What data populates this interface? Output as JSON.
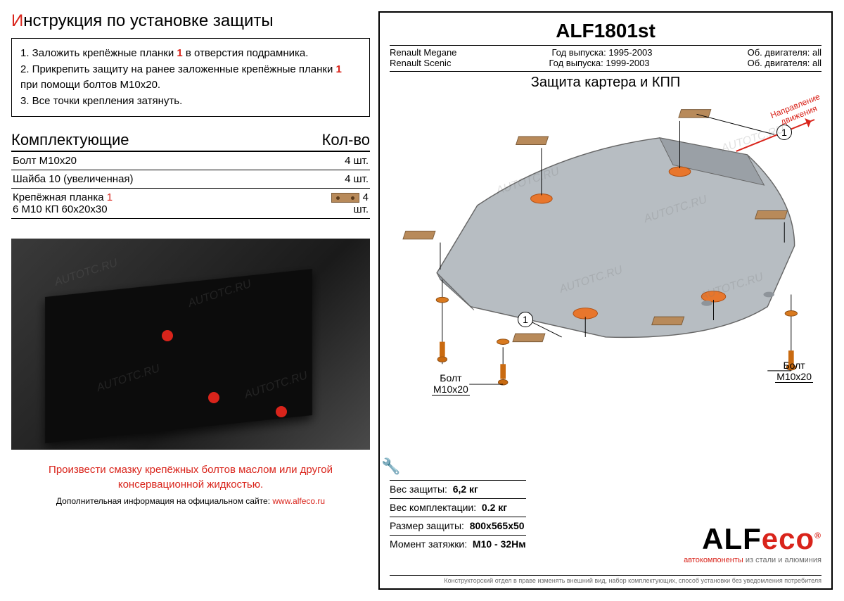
{
  "left": {
    "title_prefix": "И",
    "title_rest": "нструкция по установке защиты",
    "instructions": [
      {
        "n": "1.",
        "text_a": "Заложить крепёжные планки ",
        "red": "1",
        "text_b": " в отверстия подрамника."
      },
      {
        "n": "2.",
        "text_a": "Прикрепить защиту на ранее заложенные крепёжные планки ",
        "red": "1",
        "text_b": " при помощи болтов М10х20."
      },
      {
        "n": "3.",
        "text_a": "Все точки крепления затянуть.",
        "red": "",
        "text_b": ""
      }
    ],
    "parts_header": "Комплектующие",
    "qty_header": "Кол-во",
    "parts": [
      {
        "name": "Болт М10х20",
        "qty": "4 шт."
      },
      {
        "name": "Шайба 10 (увеличенная)",
        "qty": "4 шт."
      },
      {
        "name_a": "Крепёжная планка ",
        "red": "1",
        "name_b": "",
        "sub": "6 М10 КП 60х20х30",
        "qty": "4 шт.",
        "icon": true
      }
    ],
    "warning": "Произвести смазку крепёжных болтов маслом или другой консервационной жидкостью.",
    "footnote_a": "Дополнительная информация на официальном сайте: ",
    "footnote_link": "www.alfeco.ru"
  },
  "right": {
    "part_no": "ALF1801st",
    "spec": [
      {
        "model": "Renault Megane",
        "year_l": "Год выпуска:",
        "year_v": "1995-2003",
        "eng_l": "Об. двигателя:",
        "eng_v": "all"
      },
      {
        "model": "Renault Scenic",
        "year_l": "Год выпуска:",
        "year_v": "1999-2003",
        "eng_l": "Об. двигателя:",
        "eng_v": "all"
      }
    ],
    "diagram_title": "Защита картера и КПП",
    "direction_label": "Направление\nдвижения",
    "bolt_label": "Болт\nМ10х20",
    "bottom": [
      {
        "l": "Вес защиты:",
        "v": "6,2 кг"
      },
      {
        "l": "Вес комплектации:",
        "v": "0.2 кг"
      },
      {
        "l": "Размер защиты:",
        "v": "800х565х50"
      },
      {
        "l": "Момент затяжки:",
        "v": "М10 - 32Нм"
      }
    ],
    "brand_a": "ALF",
    "brand_b": "eco",
    "brand_sub_red": "автокомпоненты ",
    "brand_sub_gray": "из стали и алюминия",
    "disclaimer": "Конструкторский отдел в праве изменять внешний вид, набор комплектующих, способ установки без уведомления потребителя"
  },
  "watermark": "AUTOTC.RU",
  "colors": {
    "accent_red": "#d9241b",
    "plank_fill": "#b88a5a",
    "plate_gray": "#b7bdc2"
  }
}
